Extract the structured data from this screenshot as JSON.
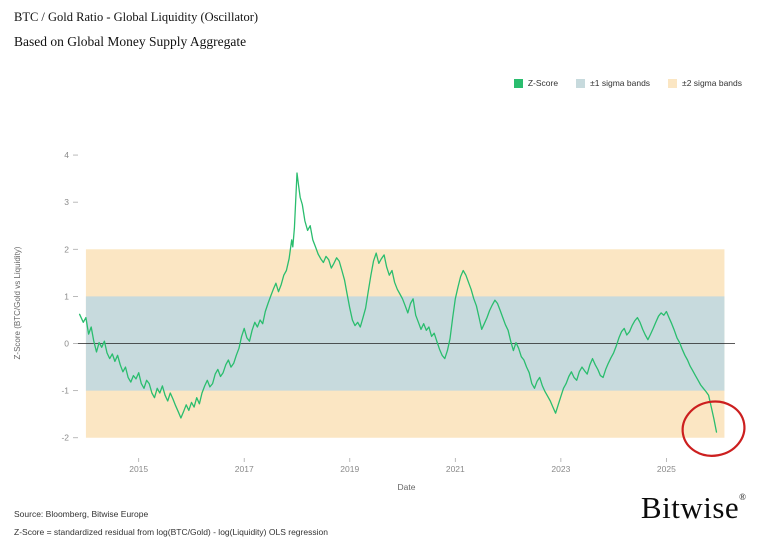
{
  "header": {
    "title": "BTC / Gold Ratio - Global Liquidity (Oscillator)",
    "subtitle": "Based on Global Money Supply Aggregate"
  },
  "legend": [
    {
      "label": "Z-Score",
      "color": "#2abd6e"
    },
    {
      "label": "±1 sigma bands",
      "color": "#c7dadd"
    },
    {
      "label": "±2 sigma bands",
      "color": "#fbe6c3"
    }
  ],
  "footer": {
    "source_line1": "Source: Bloomberg, Bitwise Europe",
    "source_line2": "Z-Score = standardized residual from log(BTC/Gold) - log(Liquidity) OLS regression",
    "brand": "Bitwise",
    "brand_reg": "®"
  },
  "chart_data": {
    "type": "line",
    "title": "BTC / Gold Ratio - Global Liquidity (Oscillator)",
    "xlabel": "Date",
    "ylabel": "Z-Score (BTC/Gold vs Liquidity)",
    "x_ticks": [
      "2015",
      "2017",
      "2019",
      "2021",
      "2023",
      "2025"
    ],
    "y_ticks": [
      4,
      3,
      2,
      1,
      0,
      -1,
      -2
    ],
    "xlim": [
      2013.85,
      2026.3
    ],
    "ylim": [
      -2.43,
      4.15
    ],
    "grid": false,
    "legend_position": "top-right",
    "zero_line": 0,
    "line_color": "#2abd6e",
    "zero_line_color": "#222222",
    "tick_color": "#8a8a8a",
    "bands": [
      {
        "label": "±2 sigma bands",
        "from": -2,
        "to": 2,
        "color": "#fbe6c3"
      },
      {
        "label": "±1 sigma bands",
        "from": -1,
        "to": 1,
        "color": "#c7dadd"
      }
    ],
    "band_x_range": [
      2014.0,
      2026.1
    ],
    "annotation": {
      "type": "circle",
      "x": 2025.95,
      "y": -1.85,
      "color": "#cc1f1f"
    },
    "series": [
      {
        "name": "Z-Score",
        "points": [
          [
            2013.88,
            0.62
          ],
          [
            2013.95,
            0.45
          ],
          [
            2014.0,
            0.55
          ],
          [
            2014.05,
            0.2
          ],
          [
            2014.1,
            0.35
          ],
          [
            2014.15,
            0.05
          ],
          [
            2014.2,
            -0.18
          ],
          [
            2014.25,
            0.02
          ],
          [
            2014.3,
            -0.08
          ],
          [
            2014.35,
            0.05
          ],
          [
            2014.4,
            -0.2
          ],
          [
            2014.45,
            -0.32
          ],
          [
            2014.5,
            -0.22
          ],
          [
            2014.55,
            -0.38
          ],
          [
            2014.6,
            -0.25
          ],
          [
            2014.65,
            -0.45
          ],
          [
            2014.7,
            -0.6
          ],
          [
            2014.75,
            -0.5
          ],
          [
            2014.8,
            -0.72
          ],
          [
            2014.85,
            -0.82
          ],
          [
            2014.9,
            -0.68
          ],
          [
            2014.95,
            -0.75
          ],
          [
            2015.0,
            -0.62
          ],
          [
            2015.05,
            -0.85
          ],
          [
            2015.1,
            -0.95
          ],
          [
            2015.15,
            -0.78
          ],
          [
            2015.2,
            -0.85
          ],
          [
            2015.25,
            -1.05
          ],
          [
            2015.3,
            -1.15
          ],
          [
            2015.35,
            -0.95
          ],
          [
            2015.4,
            -1.05
          ],
          [
            2015.45,
            -0.9
          ],
          [
            2015.5,
            -1.1
          ],
          [
            2015.55,
            -1.22
          ],
          [
            2015.6,
            -1.05
          ],
          [
            2015.65,
            -1.18
          ],
          [
            2015.7,
            -1.32
          ],
          [
            2015.75,
            -1.45
          ],
          [
            2015.8,
            -1.58
          ],
          [
            2015.85,
            -1.45
          ],
          [
            2015.9,
            -1.3
          ],
          [
            2015.95,
            -1.42
          ],
          [
            2016.0,
            -1.25
          ],
          [
            2016.05,
            -1.35
          ],
          [
            2016.1,
            -1.15
          ],
          [
            2016.15,
            -1.28
          ],
          [
            2016.2,
            -1.05
          ],
          [
            2016.25,
            -0.9
          ],
          [
            2016.3,
            -0.78
          ],
          [
            2016.35,
            -0.92
          ],
          [
            2016.4,
            -0.85
          ],
          [
            2016.45,
            -0.65
          ],
          [
            2016.5,
            -0.55
          ],
          [
            2016.55,
            -0.7
          ],
          [
            2016.6,
            -0.62
          ],
          [
            2016.65,
            -0.45
          ],
          [
            2016.7,
            -0.35
          ],
          [
            2016.75,
            -0.5
          ],
          [
            2016.8,
            -0.42
          ],
          [
            2016.85,
            -0.25
          ],
          [
            2016.9,
            -0.1
          ],
          [
            2016.95,
            0.15
          ],
          [
            2017.0,
            0.32
          ],
          [
            2017.05,
            0.12
          ],
          [
            2017.1,
            0.05
          ],
          [
            2017.15,
            0.28
          ],
          [
            2017.2,
            0.45
          ],
          [
            2017.25,
            0.35
          ],
          [
            2017.3,
            0.5
          ],
          [
            2017.35,
            0.42
          ],
          [
            2017.4,
            0.68
          ],
          [
            2017.45,
            0.85
          ],
          [
            2017.5,
            1.0
          ],
          [
            2017.55,
            1.15
          ],
          [
            2017.6,
            1.28
          ],
          [
            2017.65,
            1.1
          ],
          [
            2017.7,
            1.25
          ],
          [
            2017.75,
            1.45
          ],
          [
            2017.8,
            1.55
          ],
          [
            2017.85,
            1.8
          ],
          [
            2017.9,
            2.2
          ],
          [
            2017.92,
            2.05
          ],
          [
            2017.95,
            2.45
          ],
          [
            2018.0,
            3.62
          ],
          [
            2018.03,
            3.35
          ],
          [
            2018.06,
            3.1
          ],
          [
            2018.1,
            2.95
          ],
          [
            2018.15,
            2.6
          ],
          [
            2018.2,
            2.4
          ],
          [
            2018.25,
            2.5
          ],
          [
            2018.3,
            2.2
          ],
          [
            2018.35,
            2.05
          ],
          [
            2018.4,
            1.9
          ],
          [
            2018.45,
            1.8
          ],
          [
            2018.5,
            1.72
          ],
          [
            2018.55,
            1.85
          ],
          [
            2018.6,
            1.78
          ],
          [
            2018.65,
            1.6
          ],
          [
            2018.7,
            1.7
          ],
          [
            2018.75,
            1.82
          ],
          [
            2018.8,
            1.75
          ],
          [
            2018.85,
            1.55
          ],
          [
            2018.9,
            1.35
          ],
          [
            2018.95,
            1.05
          ],
          [
            2019.0,
            0.75
          ],
          [
            2019.05,
            0.5
          ],
          [
            2019.1,
            0.38
          ],
          [
            2019.15,
            0.45
          ],
          [
            2019.2,
            0.35
          ],
          [
            2019.25,
            0.55
          ],
          [
            2019.3,
            0.75
          ],
          [
            2019.35,
            1.1
          ],
          [
            2019.4,
            1.45
          ],
          [
            2019.45,
            1.75
          ],
          [
            2019.5,
            1.92
          ],
          [
            2019.55,
            1.7
          ],
          [
            2019.6,
            1.8
          ],
          [
            2019.65,
            1.88
          ],
          [
            2019.7,
            1.62
          ],
          [
            2019.75,
            1.45
          ],
          [
            2019.8,
            1.55
          ],
          [
            2019.85,
            1.3
          ],
          [
            2019.9,
            1.15
          ],
          [
            2019.95,
            1.05
          ],
          [
            2020.0,
            0.95
          ],
          [
            2020.05,
            0.8
          ],
          [
            2020.1,
            0.65
          ],
          [
            2020.15,
            0.85
          ],
          [
            2020.2,
            0.95
          ],
          [
            2020.25,
            0.6
          ],
          [
            2020.3,
            0.45
          ],
          [
            2020.35,
            0.3
          ],
          [
            2020.4,
            0.42
          ],
          [
            2020.45,
            0.28
          ],
          [
            2020.5,
            0.35
          ],
          [
            2020.55,
            0.15
          ],
          [
            2020.6,
            0.22
          ],
          [
            2020.65,
            0.05
          ],
          [
            2020.7,
            -0.12
          ],
          [
            2020.75,
            -0.25
          ],
          [
            2020.8,
            -0.32
          ],
          [
            2020.85,
            -0.15
          ],
          [
            2020.9,
            0.1
          ],
          [
            2020.95,
            0.55
          ],
          [
            2021.0,
            0.95
          ],
          [
            2021.05,
            1.2
          ],
          [
            2021.1,
            1.42
          ],
          [
            2021.15,
            1.55
          ],
          [
            2021.2,
            1.45
          ],
          [
            2021.25,
            1.3
          ],
          [
            2021.3,
            1.15
          ],
          [
            2021.35,
            0.95
          ],
          [
            2021.4,
            0.8
          ],
          [
            2021.45,
            0.55
          ],
          [
            2021.5,
            0.3
          ],
          [
            2021.55,
            0.42
          ],
          [
            2021.6,
            0.55
          ],
          [
            2021.65,
            0.7
          ],
          [
            2021.7,
            0.82
          ],
          [
            2021.75,
            0.92
          ],
          [
            2021.8,
            0.85
          ],
          [
            2021.85,
            0.7
          ],
          [
            2021.9,
            0.55
          ],
          [
            2021.95,
            0.4
          ],
          [
            2022.0,
            0.28
          ],
          [
            2022.05,
            0.05
          ],
          [
            2022.1,
            -0.15
          ],
          [
            2022.15,
            0.02
          ],
          [
            2022.2,
            -0.1
          ],
          [
            2022.25,
            -0.28
          ],
          [
            2022.3,
            -0.35
          ],
          [
            2022.35,
            -0.5
          ],
          [
            2022.4,
            -0.62
          ],
          [
            2022.45,
            -0.85
          ],
          [
            2022.5,
            -0.95
          ],
          [
            2022.55,
            -0.8
          ],
          [
            2022.6,
            -0.72
          ],
          [
            2022.65,
            -0.9
          ],
          [
            2022.7,
            -1.02
          ],
          [
            2022.75,
            -1.12
          ],
          [
            2022.8,
            -1.22
          ],
          [
            2022.85,
            -1.35
          ],
          [
            2022.9,
            -1.48
          ],
          [
            2022.95,
            -1.3
          ],
          [
            2023.0,
            -1.12
          ],
          [
            2023.05,
            -0.95
          ],
          [
            2023.1,
            -0.85
          ],
          [
            2023.15,
            -0.7
          ],
          [
            2023.2,
            -0.6
          ],
          [
            2023.25,
            -0.72
          ],
          [
            2023.3,
            -0.78
          ],
          [
            2023.35,
            -0.6
          ],
          [
            2023.4,
            -0.5
          ],
          [
            2023.45,
            -0.58
          ],
          [
            2023.5,
            -0.65
          ],
          [
            2023.55,
            -0.45
          ],
          [
            2023.6,
            -0.32
          ],
          [
            2023.65,
            -0.45
          ],
          [
            2023.7,
            -0.55
          ],
          [
            2023.75,
            -0.68
          ],
          [
            2023.8,
            -0.72
          ],
          [
            2023.85,
            -0.55
          ],
          [
            2023.9,
            -0.42
          ],
          [
            2023.95,
            -0.3
          ],
          [
            2024.0,
            -0.2
          ],
          [
            2024.05,
            -0.05
          ],
          [
            2024.1,
            0.12
          ],
          [
            2024.15,
            0.25
          ],
          [
            2024.2,
            0.32
          ],
          [
            2024.25,
            0.18
          ],
          [
            2024.3,
            0.25
          ],
          [
            2024.35,
            0.38
          ],
          [
            2024.4,
            0.48
          ],
          [
            2024.45,
            0.55
          ],
          [
            2024.5,
            0.45
          ],
          [
            2024.55,
            0.3
          ],
          [
            2024.6,
            0.18
          ],
          [
            2024.65,
            0.08
          ],
          [
            2024.7,
            0.2
          ],
          [
            2024.75,
            0.32
          ],
          [
            2024.8,
            0.45
          ],
          [
            2024.85,
            0.58
          ],
          [
            2024.9,
            0.65
          ],
          [
            2024.95,
            0.6
          ],
          [
            2025.0,
            0.68
          ],
          [
            2025.05,
            0.55
          ],
          [
            2025.1,
            0.42
          ],
          [
            2025.15,
            0.28
          ],
          [
            2025.2,
            0.12
          ],
          [
            2025.25,
            0.02
          ],
          [
            2025.3,
            -0.12
          ],
          [
            2025.35,
            -0.25
          ],
          [
            2025.4,
            -0.35
          ],
          [
            2025.45,
            -0.48
          ],
          [
            2025.5,
            -0.58
          ],
          [
            2025.55,
            -0.68
          ],
          [
            2025.6,
            -0.78
          ],
          [
            2025.65,
            -0.88
          ],
          [
            2025.7,
            -0.95
          ],
          [
            2025.75,
            -1.02
          ],
          [
            2025.8,
            -1.1
          ],
          [
            2025.85,
            -1.35
          ],
          [
            2025.9,
            -1.6
          ],
          [
            2025.95,
            -1.88
          ]
        ]
      }
    ]
  }
}
